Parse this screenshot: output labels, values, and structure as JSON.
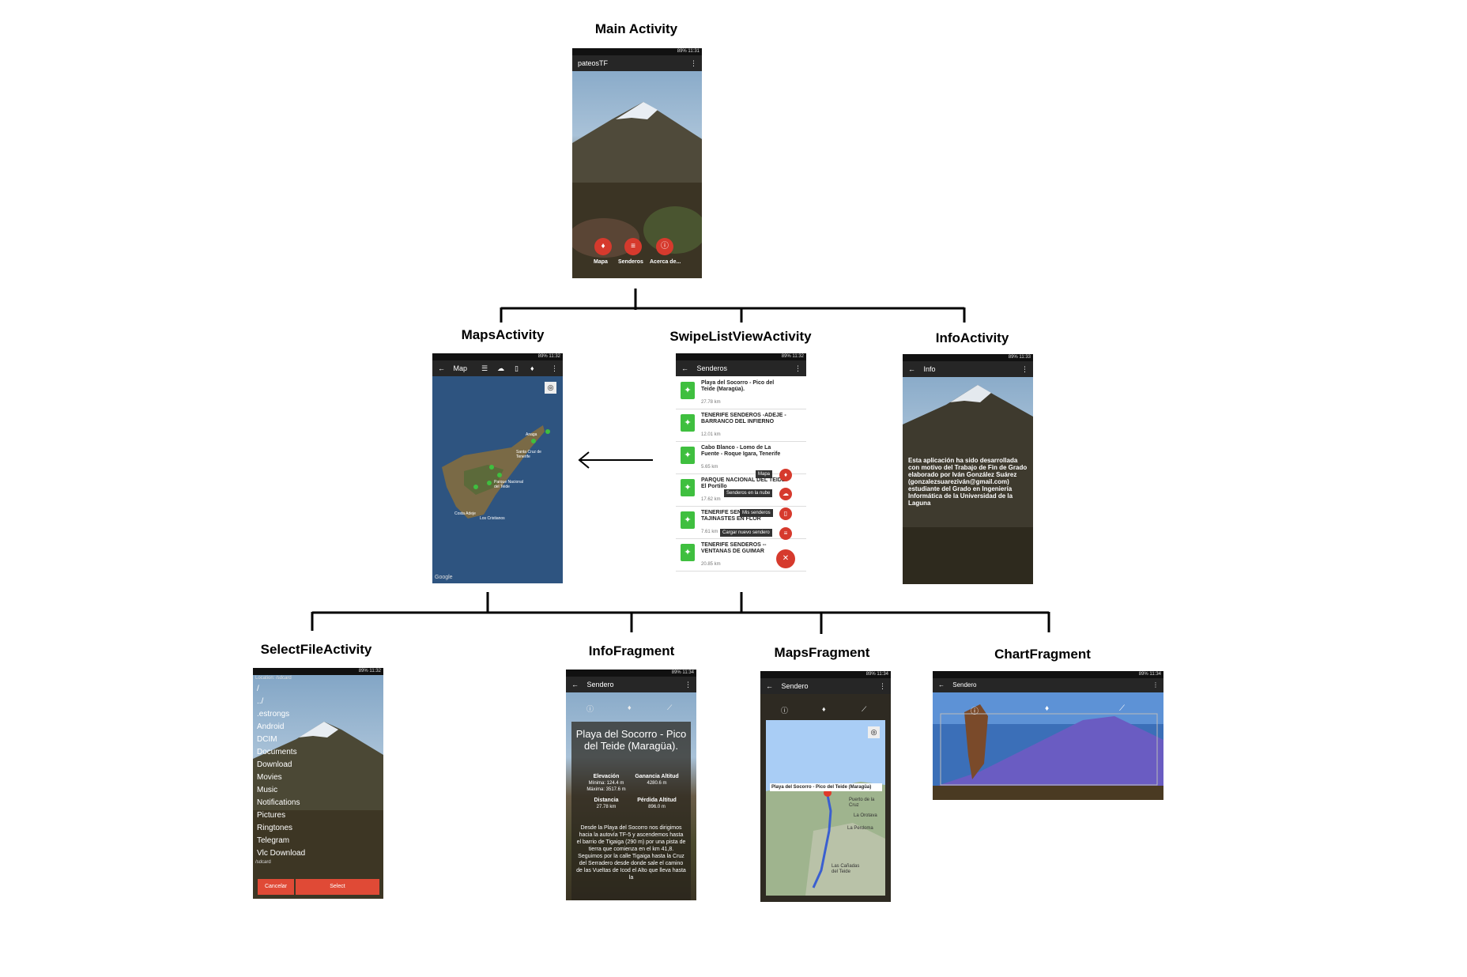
{
  "labels": {
    "main": "Main Activity",
    "maps": "MapsActivity",
    "swipe": "SwipeListViewActivity",
    "info": "InfoActivity",
    "select": "SelectFileActivity",
    "infofrag": "InfoFragment",
    "mapsfrag": "MapsFragment",
    "chartfrag": "ChartFragment"
  },
  "status": {
    "main": "89% 11:31",
    "maps": "89% 11:32",
    "swipe": "89% 11:32",
    "info": "89% 11:33",
    "select": "89% 11:32",
    "infofrag": "89% 11:34",
    "mapsfrag": "89% 11:34",
    "chartfrag": "89% 11:34"
  },
  "main_screen": {
    "app_title": "pateosTF",
    "buttons": [
      {
        "label": "Mapa",
        "icon": "hiker-icon"
      },
      {
        "label": "Senderos",
        "icon": "list-icon"
      },
      {
        "label": "Acerca de...",
        "icon": "info-icon"
      }
    ]
  },
  "maps_screen": {
    "title": "Map",
    "places": [
      "Anaga",
      "Santa Cruz de Tenerife",
      "Parque Nacional del Teide",
      "Costa Adeje",
      "Los Cristianos"
    ],
    "google": "Google"
  },
  "swipe_screen": {
    "title": "Senderos",
    "rows": [
      {
        "title": "Playa del Socorro - Pico del Teide (Maragüa).",
        "dist": "27.78 km"
      },
      {
        "title": "TENERIFE SENDEROS -ADEJE - BARRANCO DEL INFIERNO",
        "dist": "12.01 km"
      },
      {
        "title": "Cabo Blanco - Lomo de La Fuente - Roque Igara, Tenerife",
        "dist": "5.65 km"
      },
      {
        "title": "PARQUE NACIONAL DEL TEIDE: El Portillo",
        "dist": "17.62 km"
      },
      {
        "title": "TENERIFE SENDEROS -- TAJINASTES EN FLOR",
        "dist": "7.61 km"
      },
      {
        "title": "TENERIFE SENDEROS -- VENTANAS DE GUIMAR",
        "dist": "20.85 km"
      }
    ],
    "menu": [
      "Mapa",
      "Senderos en la nube",
      "Mis senderos",
      "Cargar nuevo sendero"
    ]
  },
  "info_screen": {
    "title": "Info",
    "text": "Esta aplicación ha sido desarrollada con motivo del Trabajo de Fin de Grado elaborado por Iván González Suárez (gonzalezsuareziván@gmail.com) estudiante del Grado en Ingeniería Informática de la Universidad de la Laguna"
  },
  "select_screen": {
    "location": "Location: /sdcard",
    "files": [
      "/",
      "../",
      ".estrongs",
      "Android",
      "DCIM",
      "Documents",
      "Download",
      "Movies",
      "Music",
      "Notifications",
      "Pictures",
      "Ringtones",
      "Telegram",
      "Vlc Download"
    ],
    "footer_path": "/sdcard",
    "cancel": "Cancelar",
    "select": "Select"
  },
  "infofrag_screen": {
    "title": "Sendero",
    "heading": "Playa del Socorro - Pico del Teide (Maragüa).",
    "elev_label": "Elevación",
    "elev_min": "Mínima: 124.4 m",
    "elev_max": "Máxima: 3517.6 m",
    "gain_label": "Ganancia Altitud",
    "gain_val": "4280.6 m",
    "dist_label": "Distancia",
    "dist_val": "27.78 km",
    "loss_label": "Pérdida Altitud",
    "loss_val": "896.0 m",
    "desc": "Desde la Playa del Socorro nos dirigimos hacia la autovía TF-5 y ascendemos hasta el barrio de Tigaiga (290 m) por una pista de tierra que comienza en el km 41,8. Seguimos por la calle Tigaiga hasta la Cruz del Serradero desde donde sale el camino de las Vueltas de Icod el Alto que lleva hasta la"
  },
  "mapsfrag_screen": {
    "title": "Sendero",
    "route_title": "Playa del Socorro - Pico del Teide (Maragüa)",
    "places": [
      "Puerto de la Cruz",
      "La Orotava",
      "La Perdoma",
      "Las Cañadas del Teide"
    ]
  },
  "chartfrag_screen": {
    "title": "Sendero"
  },
  "colors": {
    "accent": "#d63a2d",
    "bar": "#262626",
    "green": "#3fbf3f"
  }
}
